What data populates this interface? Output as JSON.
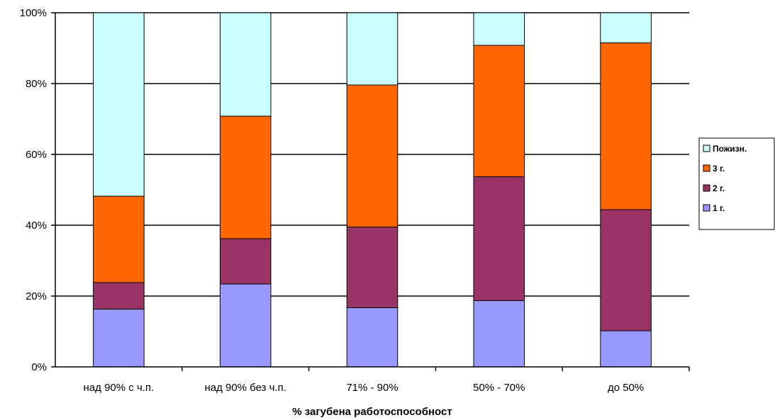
{
  "chart_data": {
    "type": "bar",
    "stacked": true,
    "percent": true,
    "title": "",
    "xlabel": "% загубена работоспособност",
    "ylabel": "",
    "ylim": [
      0,
      100
    ],
    "yticks": [
      "0%",
      "20%",
      "40%",
      "60%",
      "80%",
      "100%"
    ],
    "categories": [
      "над 90% с ч.п.",
      "над 90% без ч.п.",
      "71% - 90%",
      "50% - 70%",
      "до 50%"
    ],
    "series": [
      {
        "name": "1 г.",
        "color": "#9999ff",
        "values": [
          16.3,
          23.4,
          16.7,
          18.7,
          10.2
        ]
      },
      {
        "name": "2 г.",
        "color": "#993366",
        "values": [
          7.5,
          12.8,
          22.8,
          35.0,
          34.2
        ]
      },
      {
        "name": "3 г.",
        "color": "#ff6600",
        "values": [
          24.4,
          34.6,
          40.1,
          37.1,
          47.1
        ]
      },
      {
        "name": "Пожизн.",
        "color": "#ccffff",
        "values": [
          51.8,
          29.2,
          20.4,
          9.2,
          8.5
        ]
      }
    ],
    "legend_order": [
      "Пожизн.",
      "3 г.",
      "2 г.",
      "1 г."
    ],
    "legend_position": "right",
    "grid": true
  }
}
